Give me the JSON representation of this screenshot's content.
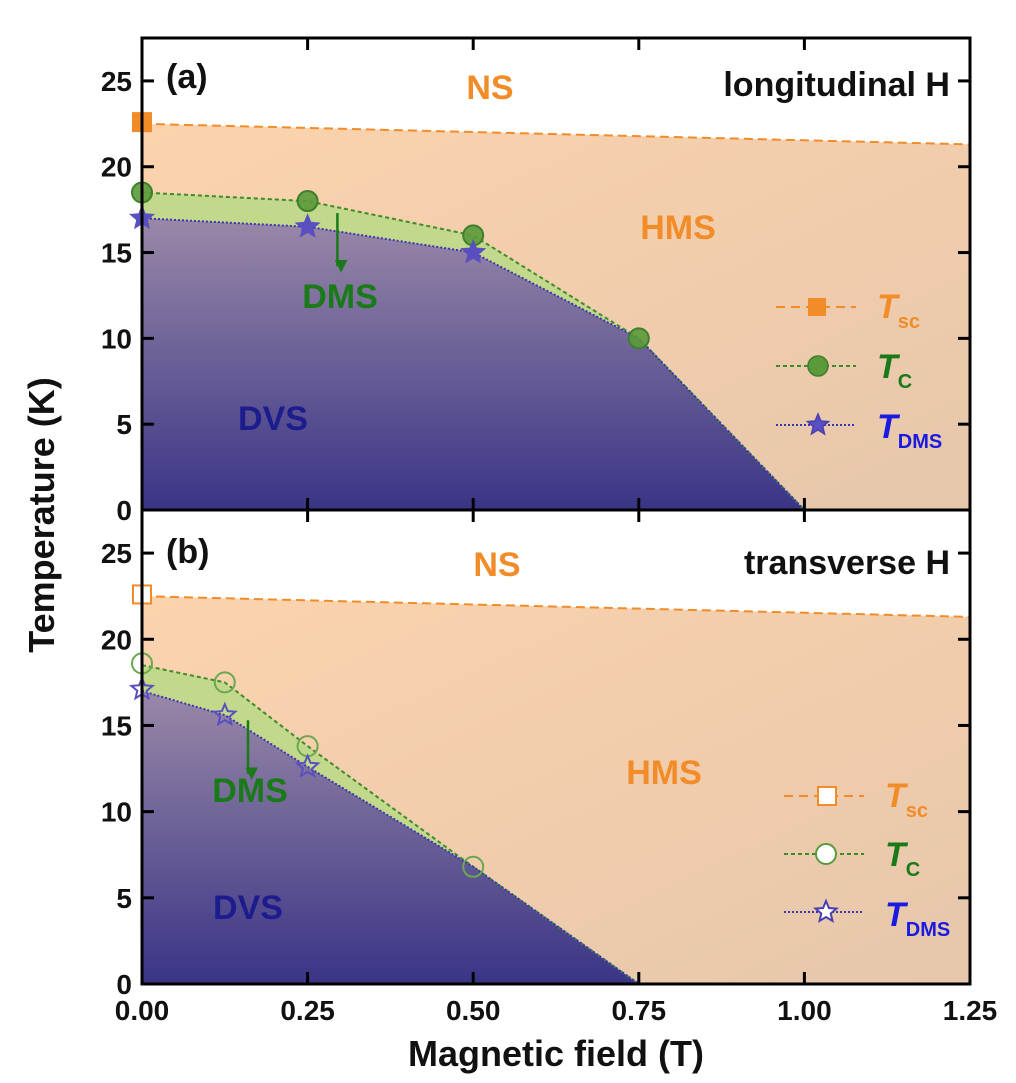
{
  "chart_data": [
    {
      "panel": "(a)",
      "type": "line",
      "title": "longitudinal H",
      "xlabel": "Magnetic field (T)",
      "ylabel": "Temperature (K)",
      "xlim": [
        0,
        1.25
      ],
      "ylim": [
        0,
        27.5
      ],
      "xticks": [
        0,
        0.25,
        0.5,
        0.75,
        1.0,
        1.25
      ],
      "yticks": [
        0,
        5,
        10,
        15,
        20,
        25
      ],
      "ytick_labels": [
        "0",
        "5",
        "10",
        "15",
        "20",
        "25"
      ],
      "regions": [
        {
          "label": "NS",
          "color": "#f28c28"
        },
        {
          "label": "HMS",
          "color": "#f28c28"
        },
        {
          "label": "DMS",
          "color": "#1a7a1a"
        },
        {
          "label": "DVS",
          "color": "#1c1c8c"
        }
      ],
      "series": [
        {
          "name": "T_sc",
          "label_main": "T",
          "label_sub": "sc",
          "color": "#f28c28",
          "marker": "square",
          "filled": true,
          "x": [
            0.0,
            1.25
          ],
          "y": [
            22.5,
            21.3
          ],
          "points": [
            [
              0.0,
              22.6
            ]
          ]
        },
        {
          "name": "T_C",
          "label_main": "T",
          "label_sub": "C",
          "color": "#5a9a3a",
          "marker": "circle",
          "filled": true,
          "x": [
            0.0,
            0.25,
            0.5,
            0.75,
            1.0
          ],
          "y": [
            18.5,
            18.0,
            16.0,
            10.0,
            0.0
          ],
          "points": [
            [
              0.0,
              18.5
            ],
            [
              0.25,
              18.0
            ],
            [
              0.5,
              16.0
            ],
            [
              0.75,
              10.0
            ]
          ]
        },
        {
          "name": "T_DMS",
          "label_main": "T",
          "label_sub": "DMS",
          "color": "#5a4fc0",
          "marker": "star",
          "filled": true,
          "x": [
            0.0,
            0.25,
            0.5,
            0.75,
            1.0
          ],
          "y": [
            17.0,
            16.5,
            15.0,
            10.0,
            0.0
          ],
          "points": [
            [
              0.0,
              17.0
            ],
            [
              0.25,
              16.5
            ],
            [
              0.5,
              15.0
            ]
          ]
        }
      ],
      "arrow": {
        "from": [
          0.295,
          17.3
        ],
        "to": [
          0.295,
          14.2
        ]
      }
    },
    {
      "panel": "(b)",
      "type": "line",
      "title": "transverse H",
      "xlabel": "Magnetic field (T)",
      "ylabel": "Temperature (K)",
      "xlim": [
        0,
        1.25
      ],
      "ylim": [
        0,
        27.5
      ],
      "xticks": [
        0,
        0.25,
        0.5,
        0.75,
        1.0,
        1.25
      ],
      "xtick_labels": [
        "0.00",
        "0.25",
        "0.50",
        "0.75",
        "1.00",
        "1.25"
      ],
      "yticks": [
        0,
        5,
        10,
        15,
        20,
        25
      ],
      "ytick_labels": [
        "0",
        "5",
        "10",
        "15",
        "20",
        "25"
      ],
      "regions": [
        {
          "label": "NS",
          "color": "#f28c28"
        },
        {
          "label": "HMS",
          "color": "#f28c28"
        },
        {
          "label": "DMS",
          "color": "#1a7a1a"
        },
        {
          "label": "DVS",
          "color": "#1c1c8c"
        }
      ],
      "series": [
        {
          "name": "T_sc",
          "label_main": "T",
          "label_sub": "sc",
          "color": "#f28c28",
          "marker": "square",
          "filled": false,
          "x": [
            0.0,
            1.25
          ],
          "y": [
            22.5,
            21.3
          ],
          "points": [
            [
              0.0,
              22.6
            ]
          ]
        },
        {
          "name": "T_C",
          "label_main": "T",
          "label_sub": "C",
          "color": "#5a9a3a",
          "marker": "circle",
          "filled": false,
          "x": [
            0.0,
            0.125,
            0.25,
            0.5,
            0.75
          ],
          "y": [
            18.5,
            17.5,
            13.8,
            6.8,
            0.0
          ],
          "points": [
            [
              0.0,
              18.6
            ],
            [
              0.125,
              17.5
            ],
            [
              0.25,
              13.8
            ],
            [
              0.5,
              6.8
            ]
          ]
        },
        {
          "name": "T_DMS",
          "label_main": "T",
          "label_sub": "DMS",
          "color": "#5a4fc0",
          "marker": "star",
          "filled": false,
          "x": [
            0.0,
            0.125,
            0.25,
            0.5,
            0.75
          ],
          "y": [
            17.0,
            15.6,
            12.6,
            6.8,
            0.0
          ],
          "points": [
            [
              0.0,
              17.1
            ],
            [
              0.125,
              15.6
            ],
            [
              0.25,
              12.6
            ]
          ]
        }
      ],
      "arrow": {
        "from": [
          0.16,
          15.3
        ],
        "to": [
          0.16,
          12.2
        ]
      }
    }
  ]
}
